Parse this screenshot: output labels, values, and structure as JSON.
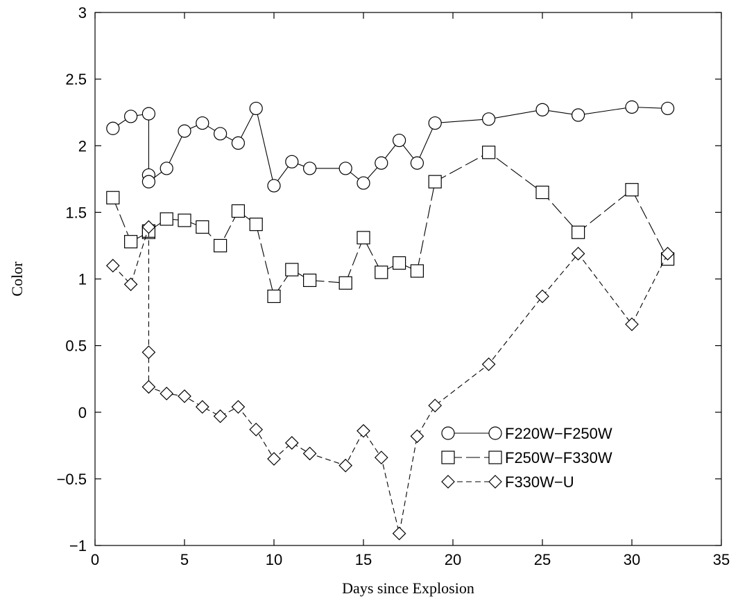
{
  "chart_data": {
    "type": "line",
    "xlabel": "Days since Explosion",
    "ylabel": "Color",
    "xlim": [
      0,
      35
    ],
    "ylim": [
      -1,
      3
    ],
    "xticks": [
      0,
      5,
      10,
      15,
      20,
      25,
      30,
      35
    ],
    "yticks": [
      -1,
      -0.5,
      0,
      0.5,
      1,
      1.5,
      2,
      2.5,
      3
    ],
    "grid": false,
    "legend_position": "lower-right",
    "series": [
      {
        "name": "F220W−F250W",
        "marker": "circle",
        "dash": "solid",
        "points": [
          [
            1,
            2.13
          ],
          [
            2,
            2.22
          ],
          [
            3,
            2.24
          ],
          [
            3,
            1.78
          ],
          [
            3,
            1.73
          ],
          [
            4,
            1.83
          ],
          [
            5,
            2.11
          ],
          [
            6,
            2.17
          ],
          [
            7,
            2.09
          ],
          [
            8,
            2.02
          ],
          [
            9,
            2.28
          ],
          [
            10,
            1.7
          ],
          [
            11,
            1.88
          ],
          [
            12,
            1.83
          ],
          [
            14,
            1.83
          ],
          [
            15,
            1.72
          ],
          [
            16,
            1.87
          ],
          [
            17,
            2.04
          ],
          [
            18,
            1.87
          ],
          [
            19,
            2.17
          ],
          [
            22,
            2.2
          ],
          [
            25,
            2.27
          ],
          [
            27,
            2.23
          ],
          [
            30,
            2.29
          ],
          [
            32,
            2.28
          ]
        ]
      },
      {
        "name": "F250W−F330W",
        "marker": "square",
        "dash": "longdash",
        "points": [
          [
            1,
            1.61
          ],
          [
            2,
            1.28
          ],
          [
            3,
            1.35
          ],
          [
            3,
            1.36
          ],
          [
            4,
            1.45
          ],
          [
            5,
            1.44
          ],
          [
            6,
            1.39
          ],
          [
            7,
            1.25
          ],
          [
            8,
            1.51
          ],
          [
            9,
            1.41
          ],
          [
            10,
            0.87
          ],
          [
            11,
            1.07
          ],
          [
            12,
            0.99
          ],
          [
            14,
            0.97
          ],
          [
            15,
            1.31
          ],
          [
            16,
            1.05
          ],
          [
            17,
            1.12
          ],
          [
            18,
            1.06
          ],
          [
            19,
            1.73
          ],
          [
            22,
            1.95
          ],
          [
            25,
            1.65
          ],
          [
            27,
            1.35
          ],
          [
            30,
            1.67
          ],
          [
            32,
            1.15
          ]
        ]
      },
      {
        "name": "F330W−U",
        "marker": "diamond",
        "dash": "shortdash",
        "points": [
          [
            1,
            1.1
          ],
          [
            2,
            0.96
          ],
          [
            3,
            1.39
          ],
          [
            3,
            0.45
          ],
          [
            3,
            0.19
          ],
          [
            4,
            0.14
          ],
          [
            5,
            0.12
          ],
          [
            6,
            0.04
          ],
          [
            7,
            -0.03
          ],
          [
            8,
            0.04
          ],
          [
            9,
            -0.13
          ],
          [
            10,
            -0.35
          ],
          [
            11,
            -0.23
          ],
          [
            12,
            -0.31
          ],
          [
            14,
            -0.4
          ],
          [
            15,
            -0.14
          ],
          [
            16,
            -0.34
          ],
          [
            17,
            -0.91
          ],
          [
            18,
            -0.18
          ],
          [
            19,
            0.05
          ],
          [
            22,
            0.36
          ],
          [
            25,
            0.87
          ],
          [
            27,
            1.19
          ],
          [
            30,
            0.66
          ],
          [
            32,
            1.19
          ]
        ]
      }
    ]
  }
}
